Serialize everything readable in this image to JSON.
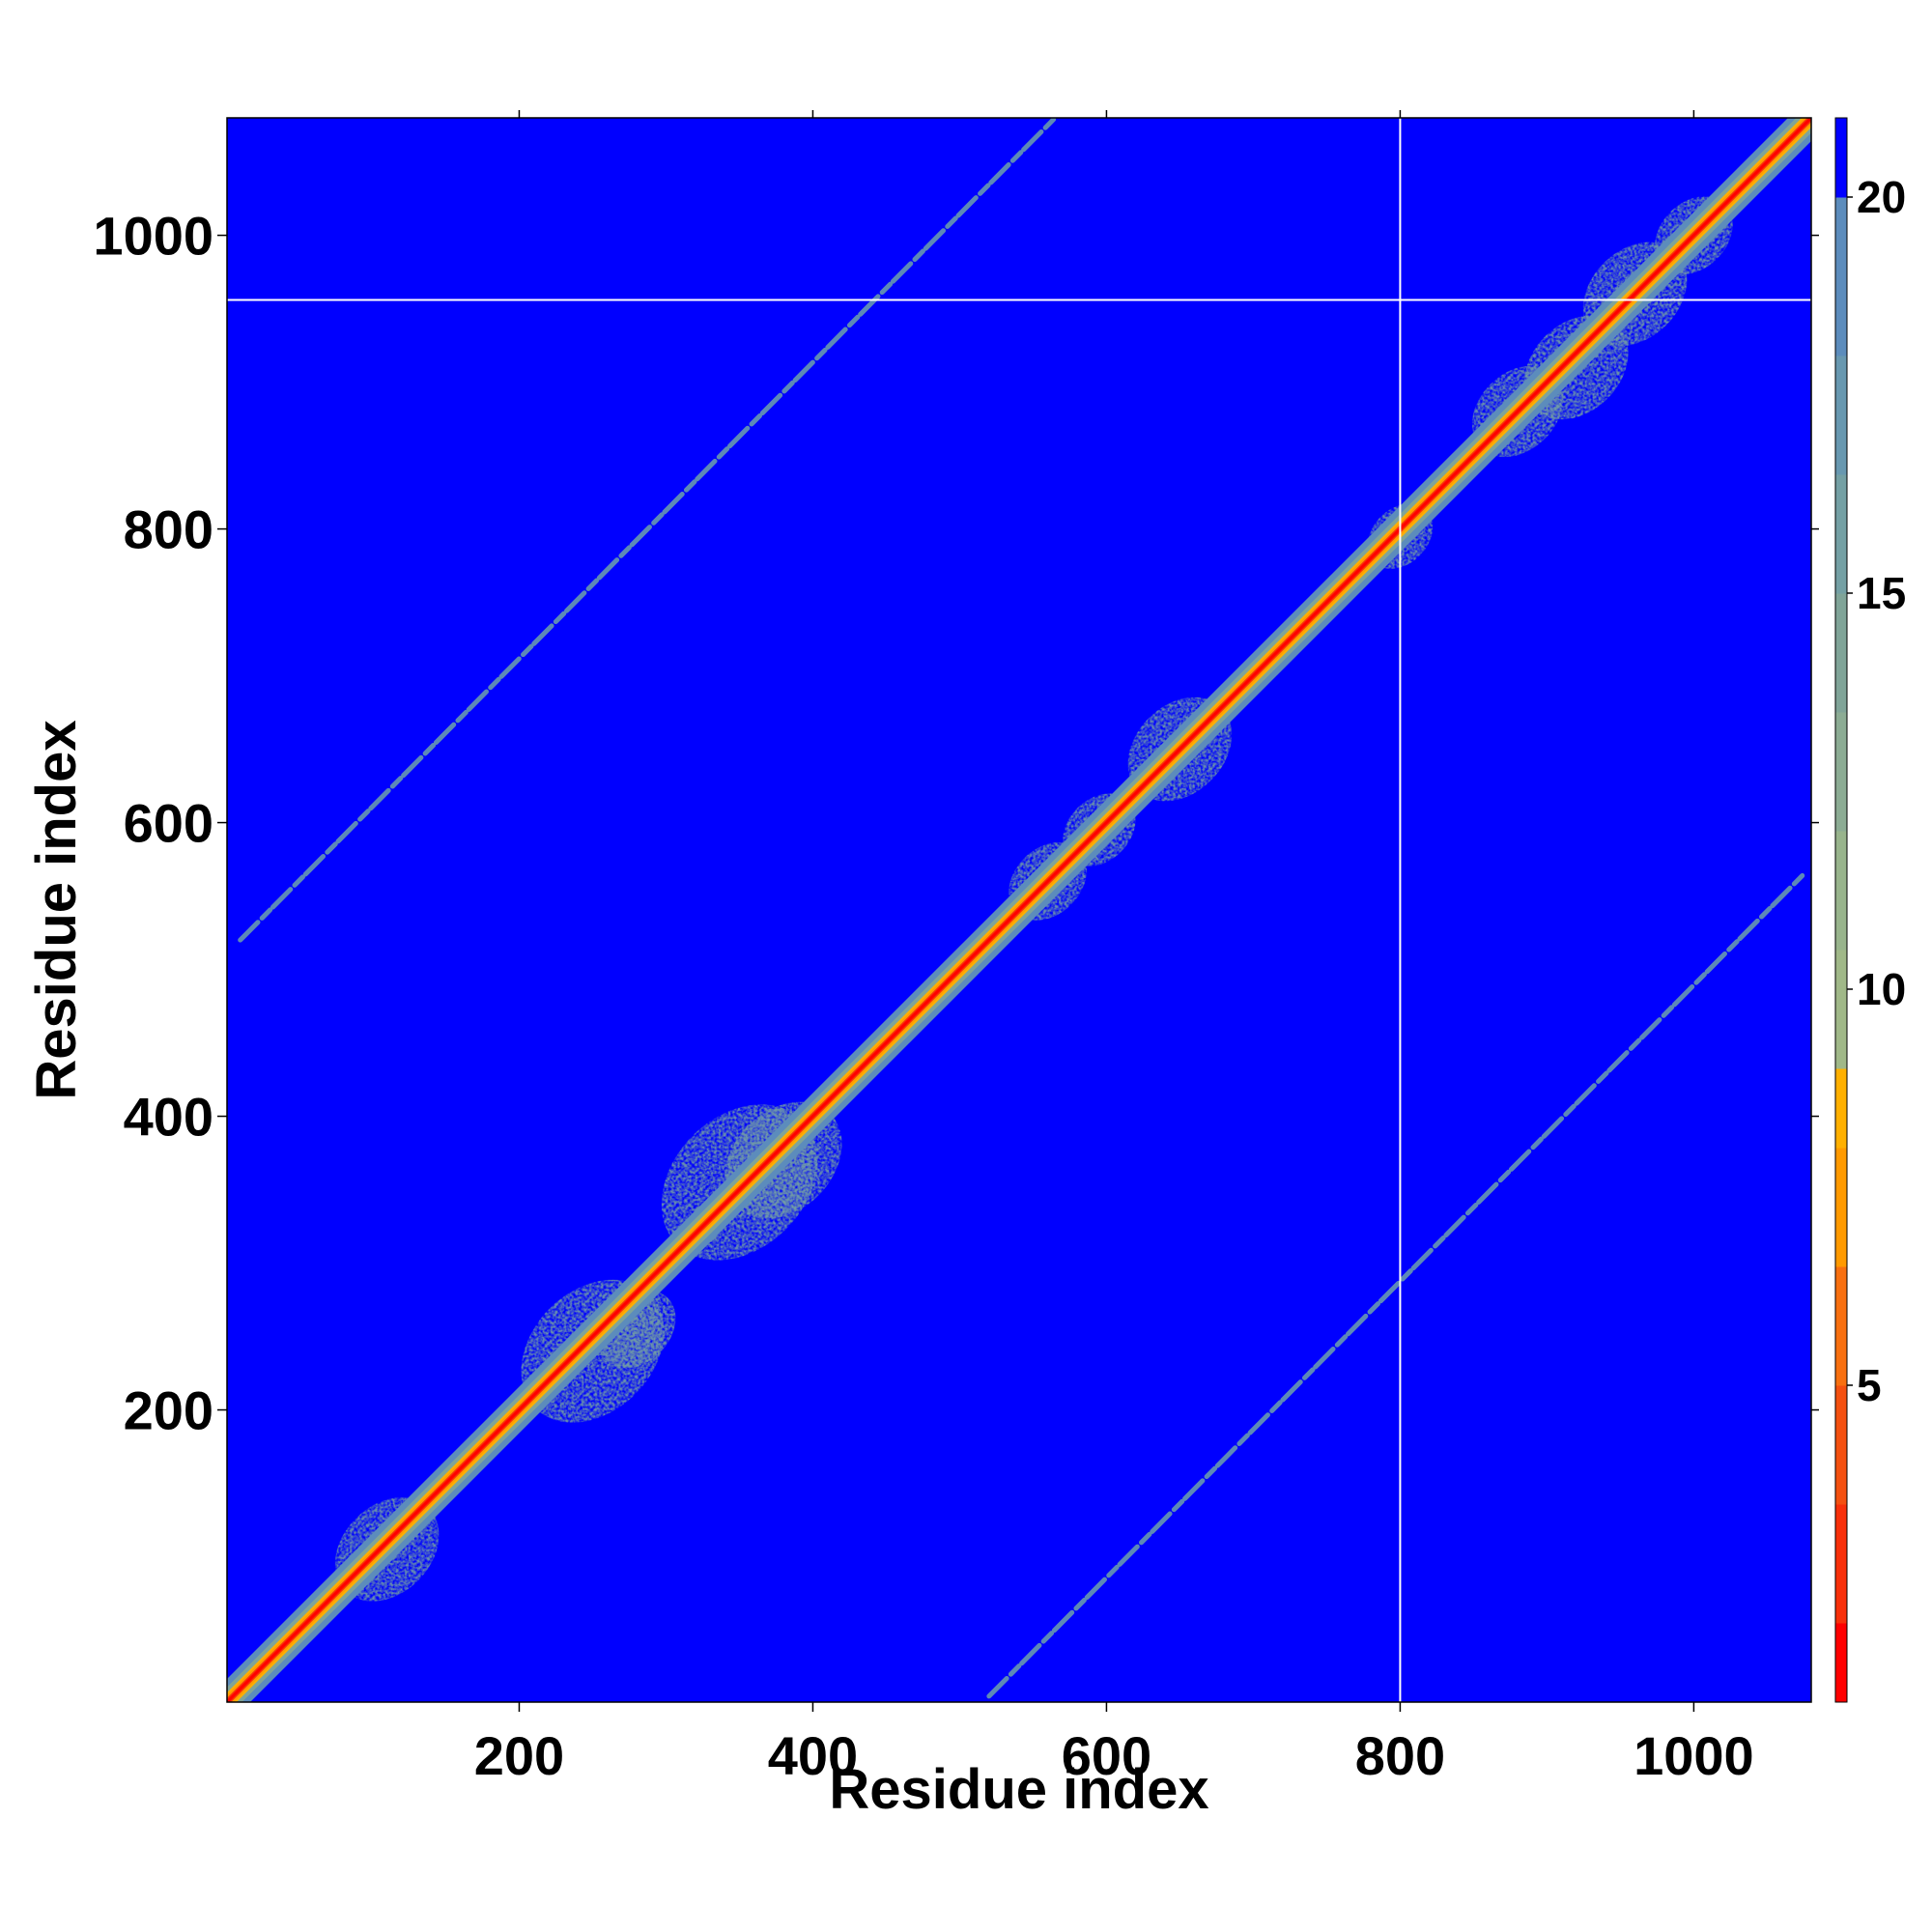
{
  "chart_data": {
    "type": "heatmap",
    "xlabel": "Residue index",
    "ylabel": "Residue index",
    "xlim": [
      1,
      1080
    ],
    "ylim": [
      1,
      1080
    ],
    "x_ticks": [
      200,
      400,
      600,
      800,
      1000
    ],
    "y_ticks": [
      200,
      400,
      600,
      800,
      1000
    ],
    "x_tick_labels": [
      "200",
      "400",
      "600",
      "800",
      "1000"
    ],
    "y_tick_labels": [
      "200",
      "400",
      "600",
      "800",
      "1000"
    ],
    "colorbar": {
      "min": 1,
      "max": 21,
      "ticks": [
        5,
        10,
        15,
        20
      ],
      "tick_labels": [
        "5",
        "10",
        "15",
        "20"
      ],
      "levels": [
        {
          "from": 1,
          "to": 2,
          "color": "#ff0000"
        },
        {
          "from": 2,
          "to": 3.5,
          "color": "#f8300a"
        },
        {
          "from": 3.5,
          "to": 5,
          "color": "#f45010"
        },
        {
          "from": 5,
          "to": 6.5,
          "color": "#f87010"
        },
        {
          "from": 6.5,
          "to": 8,
          "color": "#ff9a00"
        },
        {
          "from": 8,
          "to": 9,
          "color": "#ffb000"
        },
        {
          "from": 9,
          "to": 10.5,
          "color": "#a0b888"
        },
        {
          "from": 10.5,
          "to": 12,
          "color": "#98b48c"
        },
        {
          "from": 12,
          "to": 13.5,
          "color": "#8cac94"
        },
        {
          "from": 13.5,
          "to": 15,
          "color": "#80a498"
        },
        {
          "from": 15,
          "to": 16.5,
          "color": "#74a0a4"
        },
        {
          "from": 16.5,
          "to": 18,
          "color": "#6898b0"
        },
        {
          "from": 18,
          "to": 20,
          "color": "#5c8cbc"
        },
        {
          "from": 20,
          "to": 21,
          "color": "#0000ff"
        }
      ]
    },
    "background_color": "#0000ff",
    "main_diagonal": {
      "from": [
        1,
        1
      ],
      "to": [
        1080,
        1080
      ]
    },
    "secondary_bands": [
      {
        "from": [
          10,
          520
        ],
        "to": [
          565,
          1080
        ]
      },
      {
        "from": [
          520,
          5
        ],
        "to": [
          1075,
          565
        ]
      }
    ],
    "domain_blobs": [
      {
        "center": [
          110,
          105
        ],
        "size": 40
      },
      {
        "center": [
          250,
          240
        ],
        "size": 55
      },
      {
        "center": [
          280,
          255
        ],
        "size": 30
      },
      {
        "center": [
          350,
          355
        ],
        "size": 60
      },
      {
        "center": [
          380,
          370
        ],
        "size": 45
      },
      {
        "center": [
          560,
          560
        ],
        "size": 30
      },
      {
        "center": [
          595,
          595
        ],
        "size": 28
      },
      {
        "center": [
          650,
          650
        ],
        "size": 40
      },
      {
        "center": [
          800,
          795
        ],
        "size": 25
      },
      {
        "center": [
          880,
          880
        ],
        "size": 35
      },
      {
        "center": [
          920,
          910
        ],
        "size": 40
      },
      {
        "center": [
          960,
          960
        ],
        "size": 40
      },
      {
        "center": [
          1000,
          1000
        ],
        "size": 30
      }
    ],
    "guide_lines": {
      "x": 800,
      "y": 956
    }
  }
}
